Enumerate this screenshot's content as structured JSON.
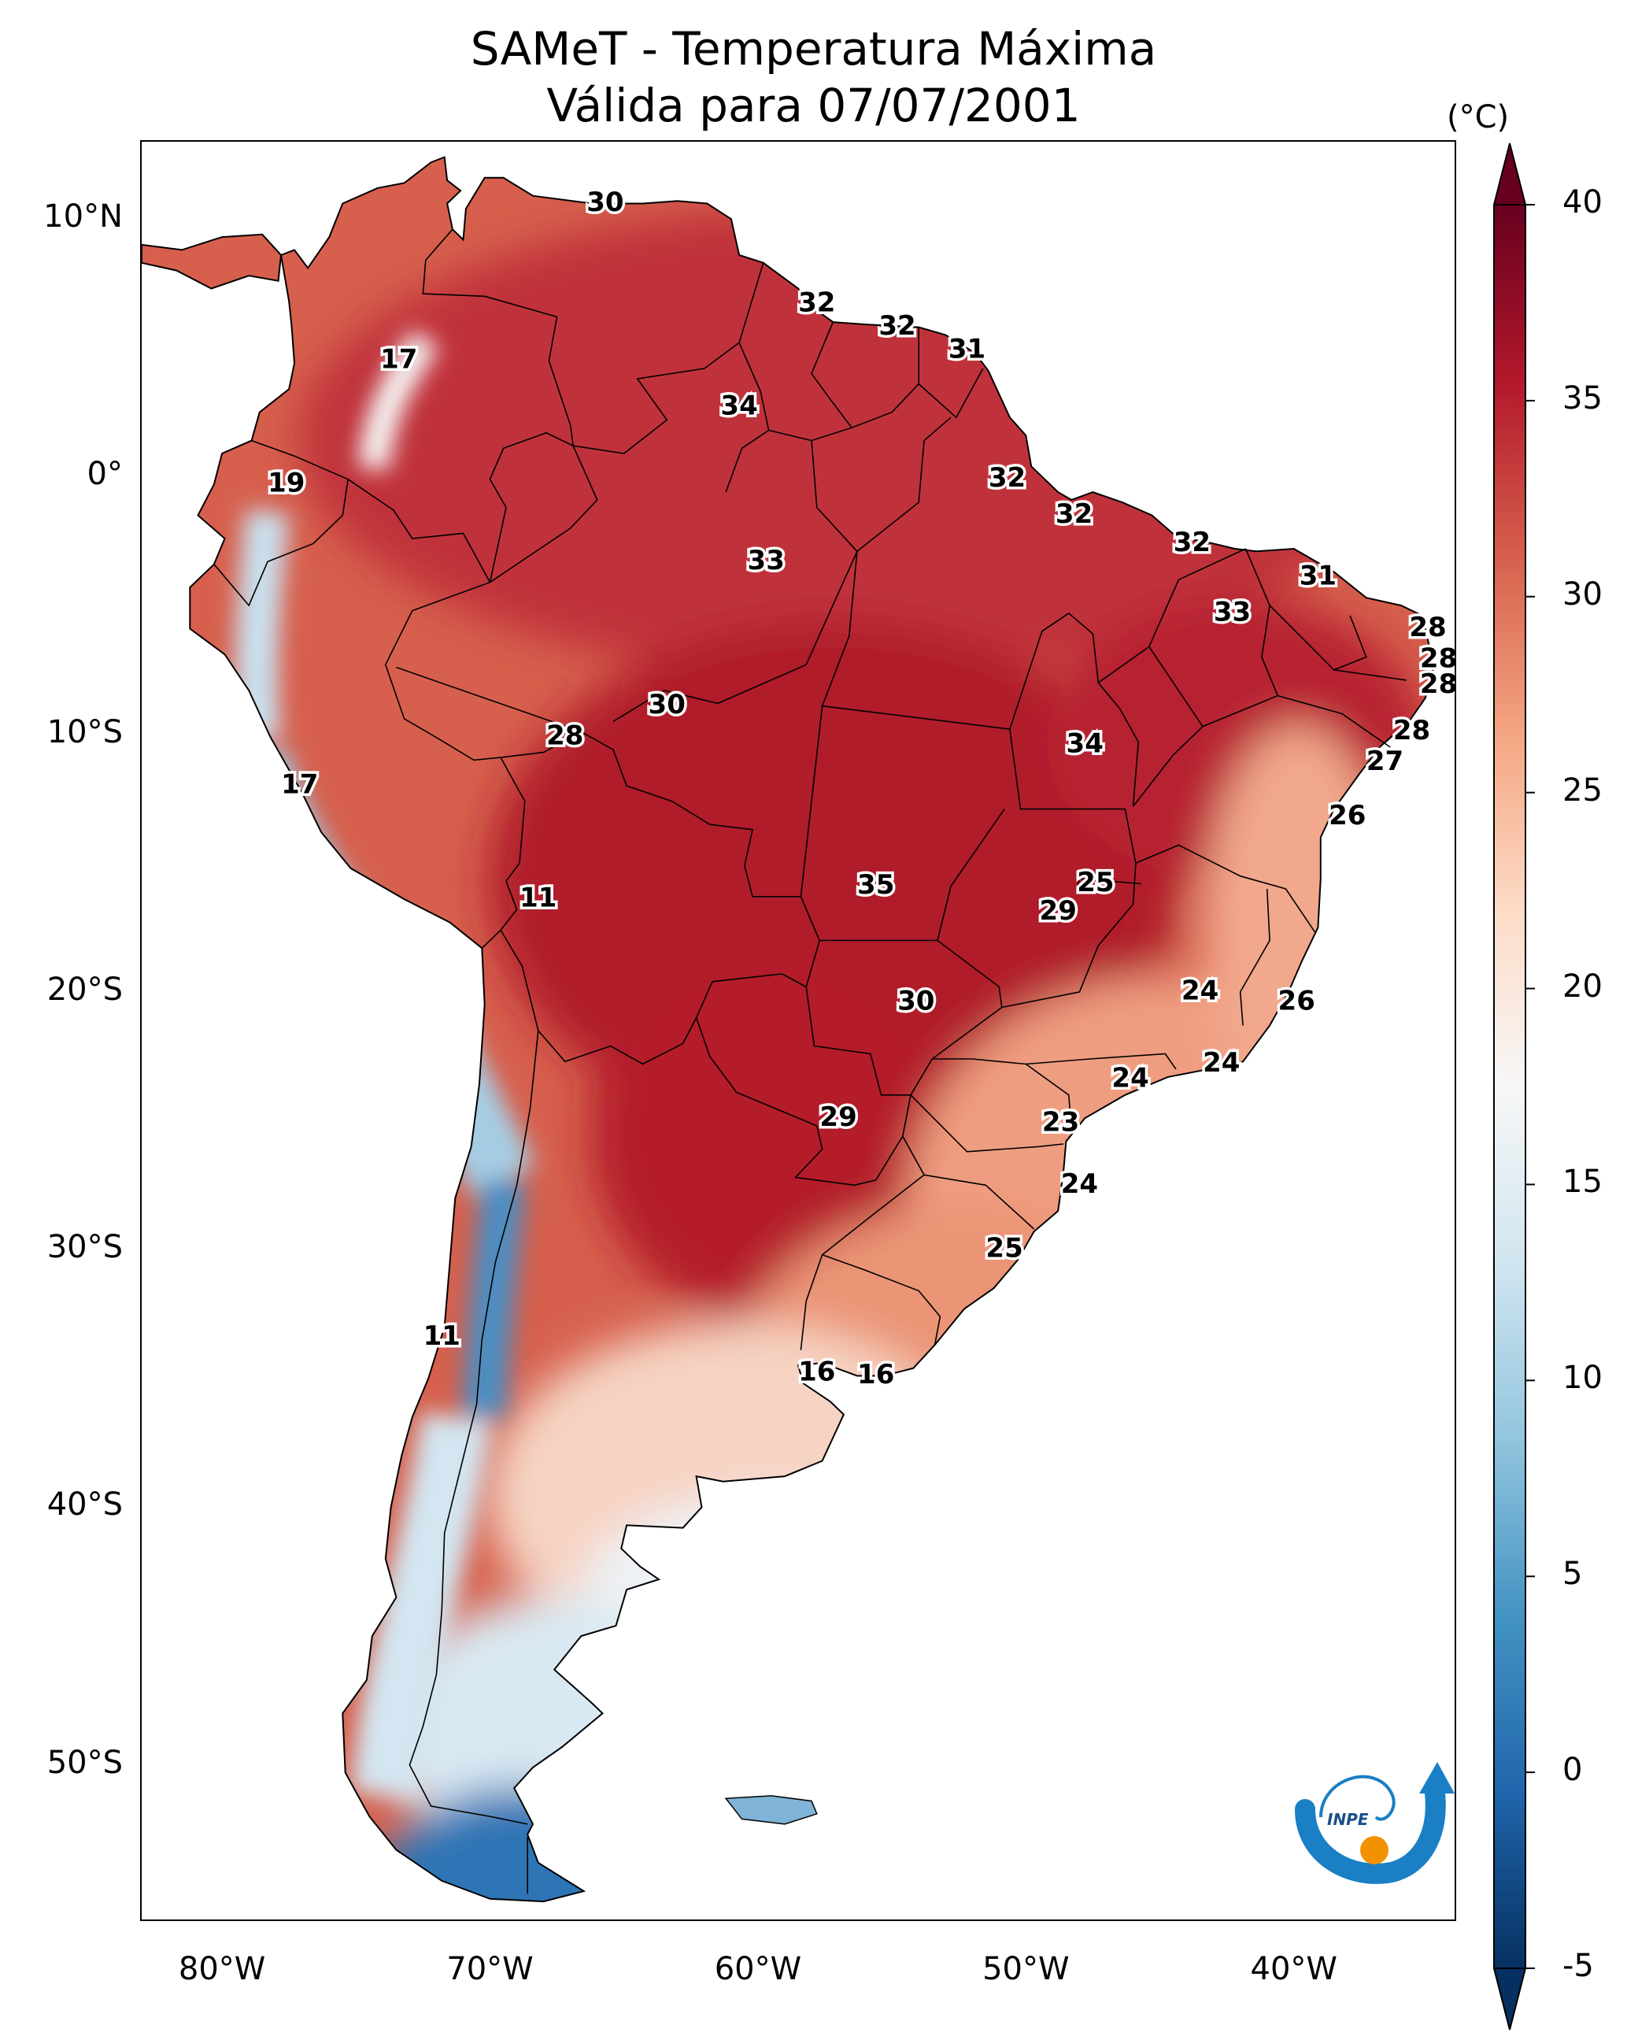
{
  "title": {
    "line1": "SAMeT - Temperatura Máxima",
    "line2": "Válida para 07/07/2001"
  },
  "colorbar": {
    "unit": "(°C)",
    "min": -5,
    "max": 40,
    "ticks": [
      "40",
      "35",
      "30",
      "25",
      "20",
      "15",
      "10",
      "5",
      "0",
      "-5"
    ],
    "tick_values": [
      40,
      35,
      30,
      25,
      20,
      15,
      10,
      5,
      0,
      -5
    ],
    "colors": [
      "#053061",
      "#2166ac",
      "#4393c3",
      "#92c5de",
      "#d1e5f0",
      "#f7f7f7",
      "#fddbc7",
      "#f4a582",
      "#d6604d",
      "#b2182b",
      "#67001f"
    ]
  },
  "axes": {
    "lat_labels": [
      "10°N",
      "0°",
      "10°S",
      "20°S",
      "30°S",
      "40°S",
      "50°S"
    ],
    "lat_values": [
      10,
      0,
      -10,
      -20,
      -30,
      -40,
      -50
    ],
    "lon_labels": [
      "80°W",
      "70°W",
      "60°W",
      "50°W",
      "40°W"
    ],
    "lon_values": [
      -80,
      -70,
      -60,
      -50,
      -40
    ],
    "lon_range": [
      -83,
      -34
    ],
    "lat_range": [
      -56,
      13
    ]
  },
  "contour_labels": [
    {
      "text": "30",
      "lon": -65.7,
      "lat": 10.6
    },
    {
      "text": "32",
      "lon": -57.8,
      "lat": 6.7
    },
    {
      "text": "32",
      "lon": -54.8,
      "lat": 5.8
    },
    {
      "text": "31",
      "lon": -52.2,
      "lat": 4.9
    },
    {
      "text": "17",
      "lon": -73.4,
      "lat": 4.5
    },
    {
      "text": "34",
      "lon": -60.7,
      "lat": 2.7
    },
    {
      "text": "19",
      "lon": -77.6,
      "lat": -0.3
    },
    {
      "text": "32",
      "lon": -50.7,
      "lat": -0.1
    },
    {
      "text": "32",
      "lon": -48.2,
      "lat": -1.5
    },
    {
      "text": "32",
      "lon": -43.8,
      "lat": -2.6
    },
    {
      "text": "33",
      "lon": -59.7,
      "lat": -3.3
    },
    {
      "text": "31",
      "lon": -39.1,
      "lat": -3.9
    },
    {
      "text": "33",
      "lon": -42.3,
      "lat": -5.3
    },
    {
      "text": "28",
      "lon": -35.0,
      "lat": -5.9
    },
    {
      "text": "28",
      "lon": -34.6,
      "lat": -7.1
    },
    {
      "text": "28",
      "lon": -34.6,
      "lat": -8.1
    },
    {
      "text": "30",
      "lon": -63.4,
      "lat": -8.9
    },
    {
      "text": "28",
      "lon": -35.6,
      "lat": -9.9
    },
    {
      "text": "28",
      "lon": -67.2,
      "lat": -10.1
    },
    {
      "text": "34",
      "lon": -47.8,
      "lat": -10.4
    },
    {
      "text": "27",
      "lon": -36.6,
      "lat": -11.1
    },
    {
      "text": "17",
      "lon": -77.1,
      "lat": -12.0
    },
    {
      "text": "26",
      "lon": -38.0,
      "lat": -13.2
    },
    {
      "text": "25",
      "lon": -47.4,
      "lat": -15.8
    },
    {
      "text": "35",
      "lon": -55.6,
      "lat": -15.9
    },
    {
      "text": "11",
      "lon": -68.2,
      "lat": -16.4
    },
    {
      "text": "29",
      "lon": -48.8,
      "lat": -16.9
    },
    {
      "text": "24",
      "lon": -43.5,
      "lat": -20.0
    },
    {
      "text": "26",
      "lon": -39.9,
      "lat": -20.4
    },
    {
      "text": "30",
      "lon": -54.1,
      "lat": -20.4
    },
    {
      "text": "24",
      "lon": -42.7,
      "lat": -22.8
    },
    {
      "text": "24",
      "lon": -46.1,
      "lat": -23.4
    },
    {
      "text": "29",
      "lon": -57.0,
      "lat": -24.9
    },
    {
      "text": "23",
      "lon": -48.7,
      "lat": -25.1
    },
    {
      "text": "24",
      "lon": -48.0,
      "lat": -27.5
    },
    {
      "text": "25",
      "lon": -50.8,
      "lat": -30.0
    },
    {
      "text": "11",
      "lon": -71.8,
      "lat": -33.4
    },
    {
      "text": "16",
      "lon": -57.8,
      "lat": -34.8
    },
    {
      "text": "16",
      "lon": -55.6,
      "lat": -34.9
    }
  ]
}
